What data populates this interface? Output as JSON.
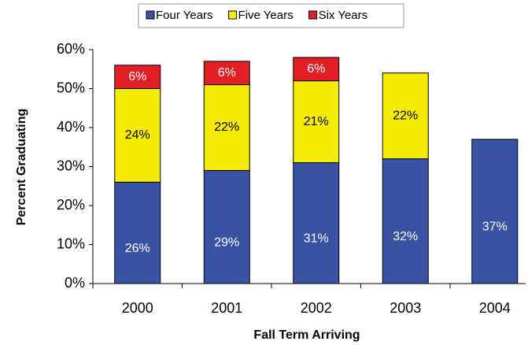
{
  "chart_data": {
    "type": "stacked_bar",
    "x_label": "Fall Term Arriving",
    "y_label": "Percent Graduating",
    "categories": [
      "2000",
      "2001",
      "2002",
      "2003",
      "2004"
    ],
    "series": [
      {
        "name": "Four Years",
        "color": "#3953a4",
        "label_color": "#ffffff",
        "values": [
          26,
          29,
          31,
          32,
          37
        ],
        "value_labels": [
          "26%",
          "29%",
          "31%",
          "32%",
          "37%"
        ]
      },
      {
        "name": "Five Years",
        "color": "#f4ec00",
        "label_color": "#000000",
        "values": [
          24,
          22,
          21,
          22,
          null
        ],
        "value_labels": [
          "24%",
          "22%",
          "21%",
          "22%",
          null
        ]
      },
      {
        "name": "Six Years",
        "color": "#e31f26",
        "label_color": "#ffffff",
        "values": [
          6,
          6,
          6,
          null,
          null
        ],
        "value_labels": [
          "6%",
          "6%",
          "6%",
          null,
          null
        ]
      }
    ],
    "ylim": [
      0,
      60
    ],
    "yticks": [
      {
        "value": 0,
        "label": "0%"
      },
      {
        "value": 10,
        "label": "10%"
      },
      {
        "value": 20,
        "label": "20%"
      },
      {
        "value": 30,
        "label": "30%"
      },
      {
        "value": 40,
        "label": "40%"
      },
      {
        "value": 50,
        "label": "50%"
      },
      {
        "value": 60,
        "label": "60%"
      }
    ],
    "legend": "top"
  }
}
